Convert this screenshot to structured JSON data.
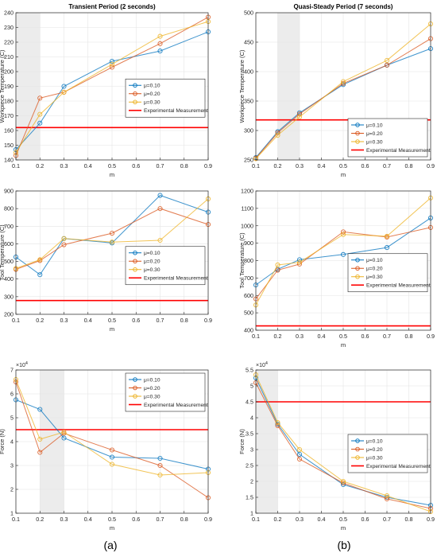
{
  "figure": {
    "caption_a": "(a)",
    "caption_b": "(b)"
  },
  "colors": {
    "mu010": "#0072BD",
    "mu020": "#D95319",
    "mu030": "#EDB120",
    "experimental": "#FF0000",
    "shade": "#D9D9D9"
  },
  "chart_data": [
    {
      "id": "a1",
      "type": "line",
      "title": "Transient Period (2 seconds)",
      "xlabel": "m",
      "ylabel": "Workpiece Temperature (C)",
      "xlim": [
        0.1,
        0.9
      ],
      "ylim": [
        140,
        240
      ],
      "xticks": [
        0.1,
        0.2,
        0.3,
        0.4,
        0.5,
        0.6,
        0.7,
        0.8,
        0.9
      ],
      "yticks": [
        140,
        150,
        160,
        170,
        180,
        190,
        200,
        210,
        220,
        230,
        240
      ],
      "exponent": "",
      "shaded_x": [
        0.1,
        0.2
      ],
      "x": [
        0.1,
        0.2,
        0.3,
        0.5,
        0.7,
        0.9
      ],
      "series": [
        {
          "name": "μ=0.10",
          "values": [
            147,
            165,
            190,
            207,
            214,
            227
          ]
        },
        {
          "name": "μ=0.20",
          "values": [
            143,
            182,
            186,
            203,
            219,
            237
          ]
        },
        {
          "name": "μ=0.30",
          "values": [
            145,
            171,
            186,
            205,
            224,
            234
          ]
        }
      ],
      "experimental": {
        "name": "Experimental Measurement",
        "value": 162
      },
      "legend": "center-right"
    },
    {
      "id": "b1",
      "type": "line",
      "title": "Quasi-Steady Period (7 seconds)",
      "xlabel": "m",
      "ylabel": "Workpiece Temperature (C)",
      "xlim": [
        0.1,
        0.9
      ],
      "ylim": [
        250,
        500
      ],
      "xticks": [
        0.1,
        0.2,
        0.3,
        0.4,
        0.5,
        0.6,
        0.7,
        0.8,
        0.9
      ],
      "yticks": [
        250,
        300,
        350,
        400,
        450,
        500
      ],
      "exponent": "",
      "shaded_x": [
        0.2,
        0.3
      ],
      "x": [
        0.1,
        0.2,
        0.3,
        0.5,
        0.7,
        0.9
      ],
      "series": [
        {
          "name": "μ=0.10",
          "values": [
            254,
            298,
            330,
            378,
            411,
            439
          ]
        },
        {
          "name": "μ=0.20",
          "values": [
            253,
            296,
            328,
            380,
            411,
            456
          ]
        },
        {
          "name": "μ=0.30",
          "values": [
            252,
            292,
            323,
            383,
            419,
            481
          ]
        }
      ],
      "experimental": {
        "name": "Experimental Measurement",
        "value": 318
      },
      "legend": "bottom-right"
    },
    {
      "id": "a2",
      "type": "line",
      "title": "",
      "xlabel": "m",
      "ylabel": "Tool Temperature (C)",
      "xlim": [
        0.1,
        0.9
      ],
      "ylim": [
        200,
        900
      ],
      "xticks": [
        0.1,
        0.2,
        0.3,
        0.4,
        0.5,
        0.6,
        0.7,
        0.8,
        0.9
      ],
      "yticks": [
        200,
        300,
        400,
        500,
        600,
        700,
        800,
        900
      ],
      "exponent": "",
      "shaded_x": null,
      "x": [
        0.1,
        0.2,
        0.3,
        0.5,
        0.7,
        0.9
      ],
      "series": [
        {
          "name": "μ=0.10",
          "values": [
            525,
            425,
            630,
            605,
            875,
            780
          ]
        },
        {
          "name": "μ=0.20",
          "values": [
            455,
            505,
            595,
            660,
            800,
            710
          ]
        },
        {
          "name": "μ=0.30",
          "values": [
            460,
            510,
            630,
            610,
            620,
            855
          ]
        }
      ],
      "experimental": {
        "name": "Experimental Measurement",
        "value": 278
      },
      "legend": "center-right"
    },
    {
      "id": "b2",
      "type": "line",
      "title": "",
      "xlabel": "m",
      "ylabel": "Tool Temperature (C)",
      "xlim": [
        0.1,
        0.9
      ],
      "ylim": [
        400,
        1200
      ],
      "xticks": [
        0.1,
        0.2,
        0.3,
        0.4,
        0.5,
        0.6,
        0.7,
        0.8,
        0.9
      ],
      "yticks": [
        400,
        500,
        600,
        700,
        800,
        900,
        1000,
        1100,
        1200
      ],
      "exponent": "",
      "shaded_x": null,
      "x": [
        0.1,
        0.2,
        0.3,
        0.5,
        0.7,
        0.9
      ],
      "series": [
        {
          "name": "μ=0.10",
          "values": [
            660,
            750,
            805,
            835,
            875,
            1045
          ]
        },
        {
          "name": "μ=0.20",
          "values": [
            580,
            745,
            780,
            965,
            935,
            990
          ]
        },
        {
          "name": "μ=0.30",
          "values": [
            545,
            775,
            790,
            950,
            940,
            1160
          ]
        }
      ],
      "experimental": {
        "name": "Experimental Measurement",
        "value": 425
      },
      "legend": "center-right"
    },
    {
      "id": "a3",
      "type": "line",
      "title": "",
      "xlabel": "m",
      "ylabel": "Force (N)",
      "xlim": [
        0.1,
        0.9
      ],
      "ylim": [
        1,
        7
      ],
      "xticks": [
        0.1,
        0.2,
        0.3,
        0.4,
        0.5,
        0.6,
        0.7,
        0.8,
        0.9
      ],
      "yticks": [
        1,
        2,
        3,
        4,
        5,
        6,
        7
      ],
      "exponent": "×10",
      "exponent_power": "4",
      "shaded_x": [
        0.2,
        0.3
      ],
      "x": [
        0.1,
        0.2,
        0.3,
        0.5,
        0.7,
        0.9
      ],
      "series": [
        {
          "name": "μ=0.10",
          "values": [
            5.75,
            5.35,
            4.15,
            3.35,
            3.3,
            2.85
          ]
        },
        {
          "name": "μ=0.20",
          "values": [
            6.5,
            3.55,
            4.35,
            3.65,
            3.0,
            1.65
          ]
        },
        {
          "name": "μ=0.30",
          "values": [
            6.6,
            4.1,
            4.4,
            3.05,
            2.6,
            2.7
          ]
        }
      ],
      "experimental": {
        "name": "Experimental Measurement",
        "value": 4.5
      },
      "legend": "top-right"
    },
    {
      "id": "b3",
      "type": "line",
      "title": "",
      "xlabel": "m",
      "ylabel": "Force (N)",
      "xlim": [
        0.1,
        0.9
      ],
      "ylim": [
        1,
        5.5
      ],
      "xticks": [
        0.1,
        0.2,
        0.3,
        0.4,
        0.5,
        0.6,
        0.7,
        0.8,
        0.9
      ],
      "yticks": [
        1,
        1.5,
        2,
        2.5,
        3,
        3.5,
        4,
        4.5,
        5,
        5.5
      ],
      "exponent": "×10",
      "exponent_power": "4",
      "shaded_x": [
        0.1,
        0.2
      ],
      "x": [
        0.1,
        0.2,
        0.3,
        0.5,
        0.7,
        0.9
      ],
      "series": [
        {
          "name": "μ=0.10",
          "values": [
            5.25,
            3.8,
            2.85,
            1.9,
            1.5,
            1.25
          ]
        },
        {
          "name": "μ=0.20",
          "values": [
            5.1,
            3.75,
            2.7,
            1.95,
            1.45,
            1.15
          ]
        },
        {
          "name": "μ=0.30",
          "values": [
            5.35,
            3.85,
            3.0,
            2.0,
            1.55,
            1.05
          ]
        }
      ],
      "experimental": {
        "name": "Experimental Measurement",
        "value": 4.5
      },
      "legend": "center-right"
    }
  ]
}
